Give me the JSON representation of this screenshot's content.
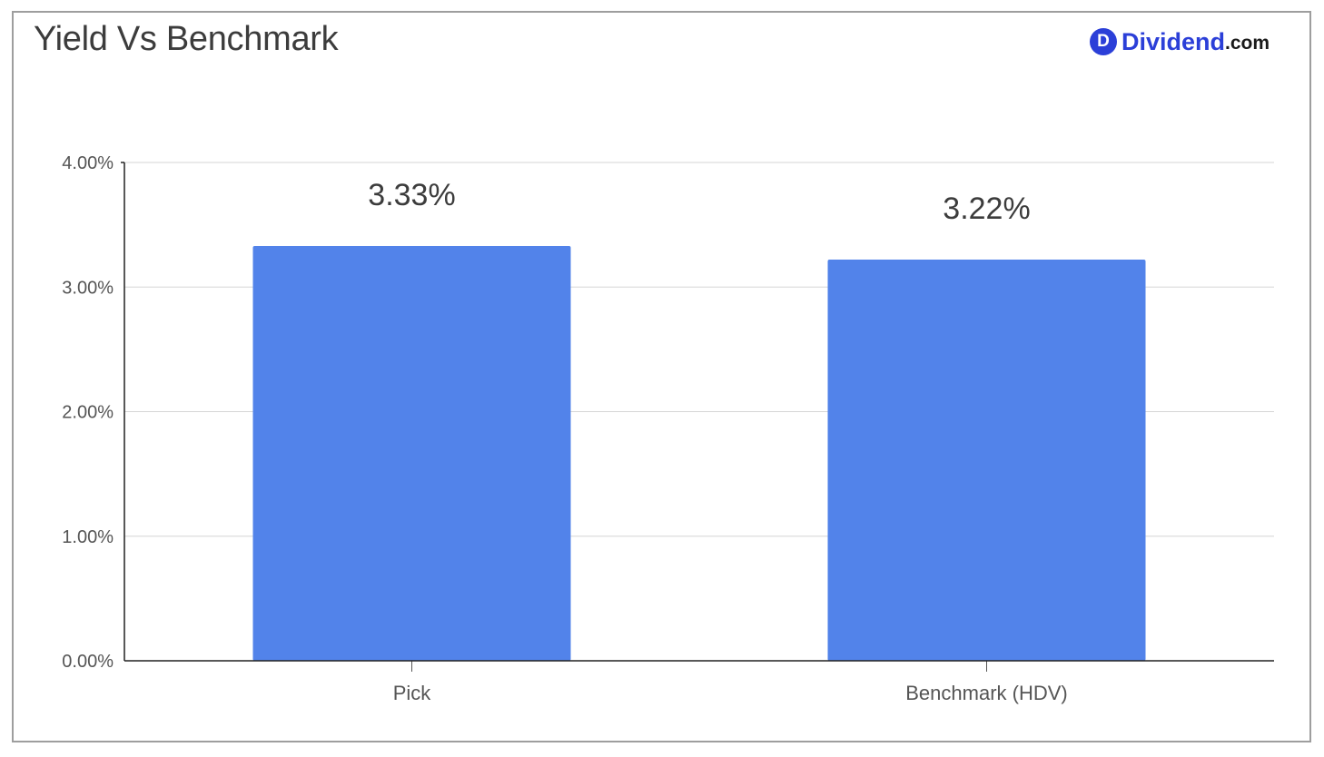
{
  "brand": {
    "badge": "D",
    "name": "Dividend",
    "tld": ".com",
    "color": "#2b3fd8"
  },
  "chart_data": {
    "type": "bar",
    "title": "Yield Vs Benchmark",
    "categories": [
      "Pick",
      "Benchmark (HDV)"
    ],
    "values": [
      3.33,
      3.22
    ],
    "data_labels": [
      "3.33%",
      "3.22%"
    ],
    "ylim": [
      0,
      4
    ],
    "yticks": [
      0,
      1,
      2,
      3,
      4
    ],
    "ytick_labels": [
      "0.00%",
      "1.00%",
      "2.00%",
      "3.00%",
      "4.00%"
    ],
    "xlabel": "",
    "ylabel": "",
    "grid": true,
    "bar_color": "#5283ea"
  }
}
